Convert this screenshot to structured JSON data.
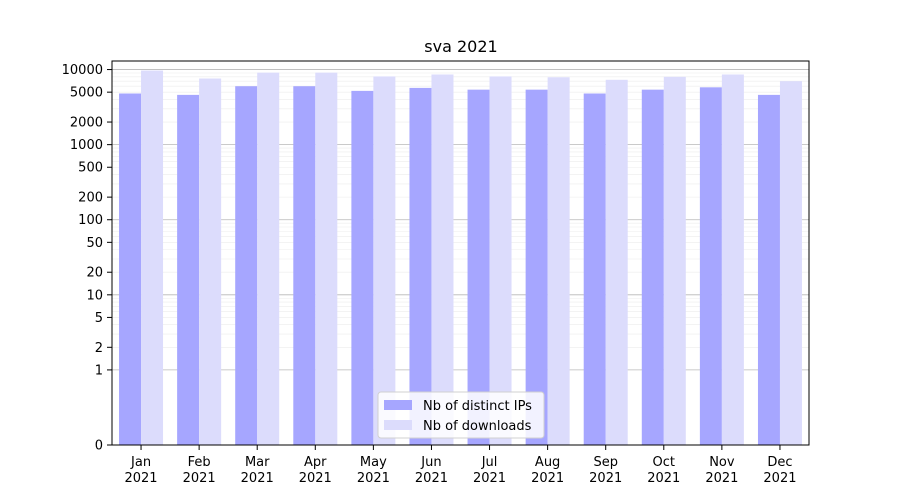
{
  "chart_data": {
    "type": "bar",
    "title": "sva 2021",
    "xlabel": "",
    "ylabel": "",
    "yscale": "symlog",
    "ylim": [
      0,
      13000
    ],
    "yticks": [
      0,
      1,
      2,
      5,
      10,
      20,
      50,
      100,
      200,
      500,
      1000,
      2000,
      5000,
      10000
    ],
    "grid": true,
    "legend_position": "bottom-center",
    "categories": [
      "Jan\n2021",
      "Feb\n2021",
      "Mar\n2021",
      "Apr\n2021",
      "May\n2021",
      "Jun\n2021",
      "Jul\n2021",
      "Aug\n2021",
      "Sep\n2021",
      "Oct\n2021",
      "Nov\n2021",
      "Dec\n2021"
    ],
    "series": [
      {
        "name": "Nb of distinct IPs",
        "color": "#a6a6ff",
        "values": [
          4800,
          4600,
          6000,
          6000,
          5200,
          5700,
          5400,
          5400,
          4800,
          5400,
          5800,
          4600
        ]
      },
      {
        "name": "Nb of downloads",
        "color": "#dcdcfc",
        "values": [
          9700,
          7600,
          9100,
          9100,
          8100,
          8600,
          8100,
          7900,
          7300,
          8000,
          8600,
          7000
        ]
      }
    ]
  }
}
